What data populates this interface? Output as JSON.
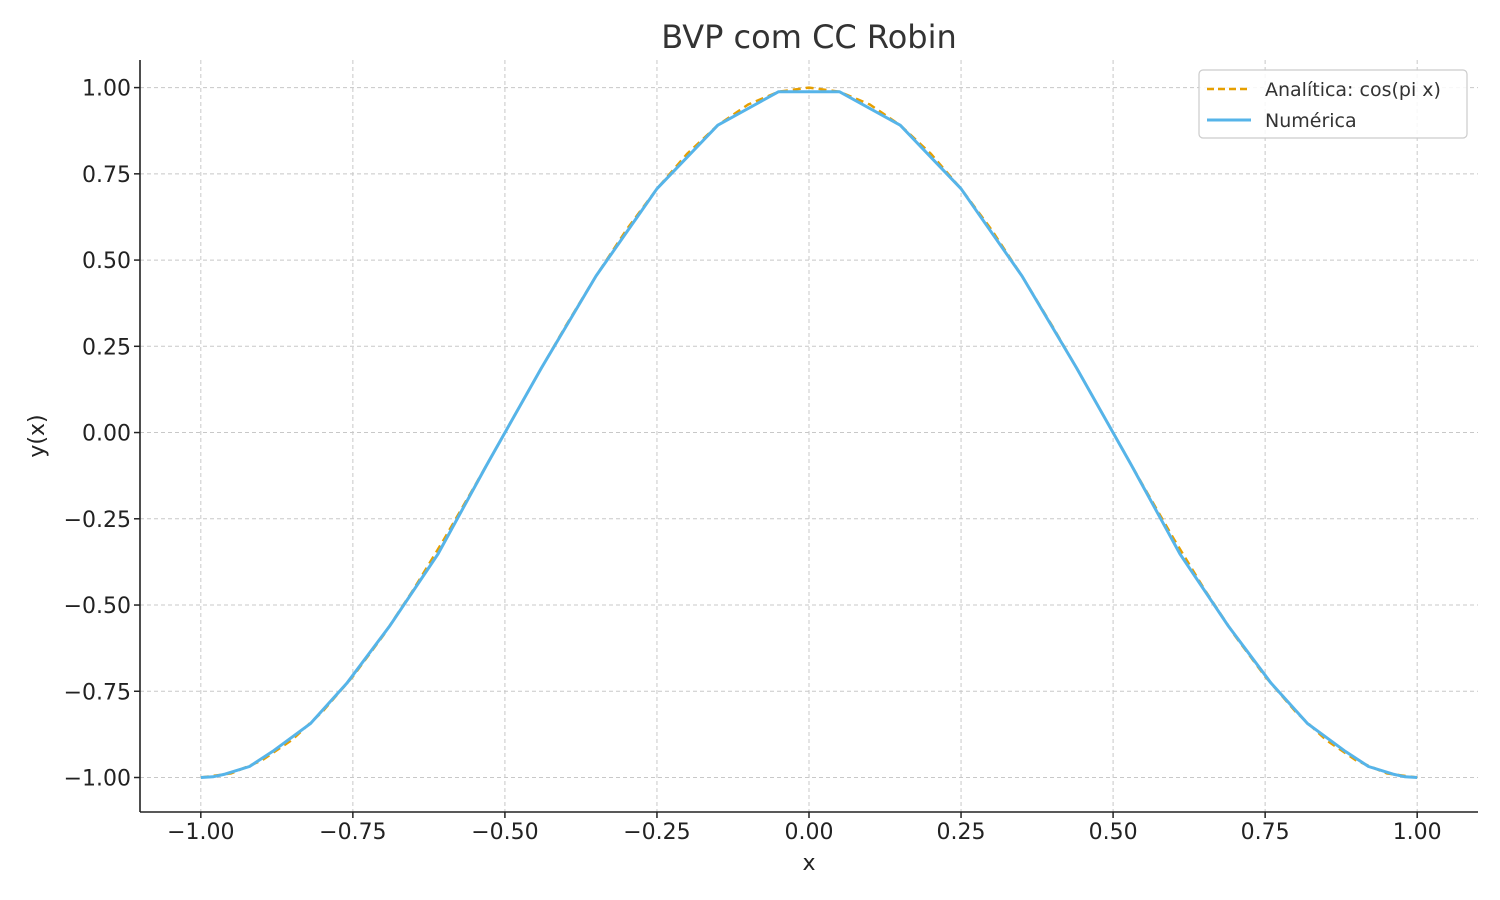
{
  "chart_data": {
    "type": "line",
    "title": "BVP com CC Robin",
    "xlabel": "x",
    "ylabel": "y(x)",
    "xlim": [
      -1.1,
      1.1
    ],
    "ylim": [
      -1.1,
      1.08
    ],
    "xticks": [
      -1.0,
      -0.75,
      -0.5,
      -0.25,
      0.0,
      0.25,
      0.5,
      0.75,
      1.0
    ],
    "xtick_labels": [
      "−1.00",
      "−0.75",
      "−0.50",
      "−0.25",
      "0.00",
      "0.25",
      "0.50",
      "0.75",
      "1.00"
    ],
    "yticks": [
      1.0,
      0.75,
      0.5,
      0.25,
      0.0,
      -0.25,
      -0.5,
      -0.75,
      -1.0
    ],
    "ytick_labels": [
      "1.00",
      "0.75",
      "0.50",
      "0.25",
      "0.00",
      "−0.25",
      "−0.50",
      "−0.75",
      "−1.00"
    ],
    "grid": true,
    "legend_position": "top-right",
    "series": [
      {
        "name": "Analítica: cos(pi x)",
        "color": "#e69f00",
        "style": "dashed",
        "x": [
          -1.0,
          -0.95,
          -0.9,
          -0.85,
          -0.8,
          -0.75,
          -0.7,
          -0.65,
          -0.6,
          -0.55,
          -0.5,
          -0.45,
          -0.4,
          -0.35,
          -0.3,
          -0.25,
          -0.2,
          -0.15,
          -0.1,
          -0.05,
          0.0,
          0.05,
          0.1,
          0.15,
          0.2,
          0.25,
          0.3,
          0.35,
          0.4,
          0.45,
          0.5,
          0.55,
          0.6,
          0.65,
          0.7,
          0.75,
          0.8,
          0.85,
          0.9,
          0.95,
          1.0
        ],
        "y": [
          -1.0,
          -0.988,
          -0.951,
          -0.891,
          -0.809,
          -0.707,
          -0.588,
          -0.454,
          -0.309,
          -0.156,
          0.0,
          0.156,
          0.309,
          0.454,
          0.588,
          0.707,
          0.809,
          0.891,
          0.951,
          0.988,
          1.0,
          0.988,
          0.951,
          0.891,
          0.809,
          0.707,
          0.588,
          0.454,
          0.309,
          0.156,
          0.0,
          -0.156,
          -0.309,
          -0.454,
          -0.588,
          -0.707,
          -0.809,
          -0.891,
          -0.951,
          -0.988,
          -1.0
        ]
      },
      {
        "name": "Numérica",
        "color": "#56b4e9",
        "style": "solid",
        "x": [
          -1.0,
          -0.98,
          -0.96,
          -0.92,
          -0.88,
          -0.82,
          -0.76,
          -0.69,
          -0.61,
          -0.53,
          -0.44,
          -0.35,
          -0.25,
          -0.15,
          -0.05,
          0.05,
          0.15,
          0.25,
          0.35,
          0.44,
          0.53,
          0.61,
          0.69,
          0.76,
          0.82,
          0.88,
          0.92,
          0.96,
          0.98,
          1.0
        ],
        "y": [
          -1.0,
          -0.998,
          -0.99,
          -0.968,
          -0.922,
          -0.844,
          -0.727,
          -0.562,
          -0.352,
          -0.094,
          0.187,
          0.454,
          0.707,
          0.891,
          0.988,
          0.988,
          0.891,
          0.707,
          0.454,
          0.187,
          -0.094,
          -0.352,
          -0.562,
          -0.727,
          -0.844,
          -0.922,
          -0.968,
          -0.99,
          -0.998,
          -1.0
        ]
      }
    ]
  }
}
